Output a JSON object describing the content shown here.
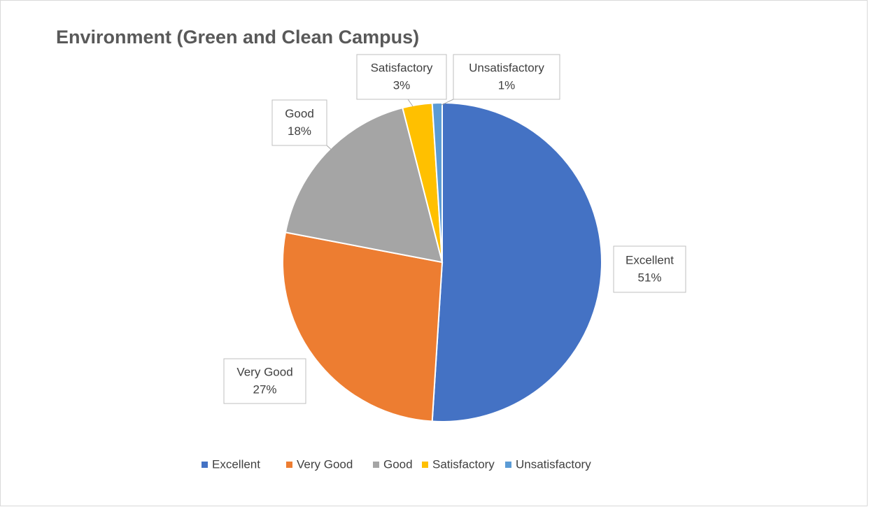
{
  "chart_data": {
    "type": "pie",
    "title": "Environment (Green and Clean Campus)",
    "categories": [
      "Excellent",
      "Very Good",
      "Good",
      "Satisfactory",
      "Unsatisfactory"
    ],
    "values": [
      51,
      27,
      18,
      3,
      1
    ],
    "value_labels": [
      "51%",
      "27%",
      "18%",
      "3%",
      "1%"
    ],
    "colors": [
      "#4472c4",
      "#ed7d31",
      "#a5a5a5",
      "#ffc000",
      "#5b9bd5"
    ],
    "legend": "bottom"
  }
}
